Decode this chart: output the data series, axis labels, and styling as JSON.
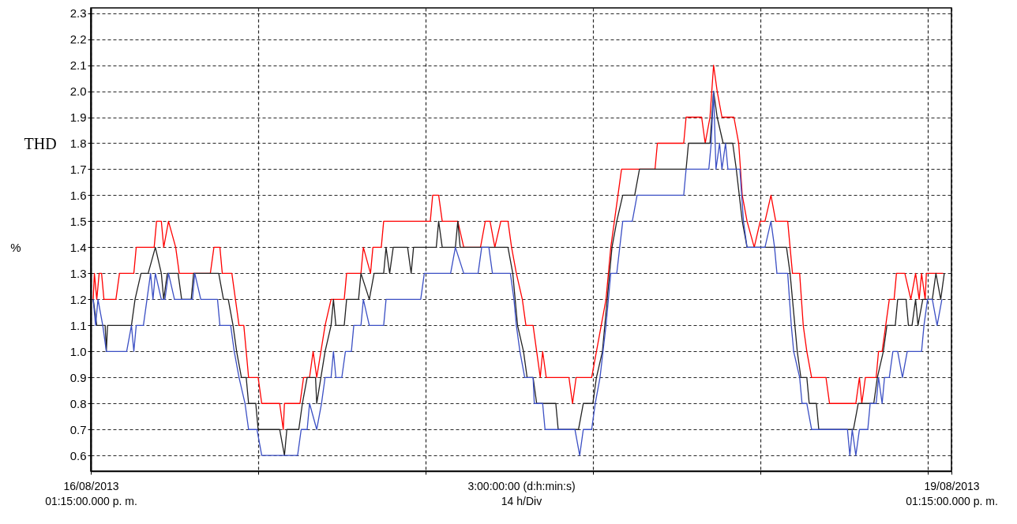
{
  "chart_data": {
    "type": "line",
    "xlabel": "3:00:00:00 (d:h:min:s)\n14 h/Div",
    "ylabel": "THD",
    "annotations": [
      "%"
    ],
    "xlim": [
      "2013-08-16T13:15",
      "2013-08-19T13:15"
    ],
    "ylim": [
      0.54,
      2.32
    ],
    "xticks": [
      {
        "value": "2013-08-16T13:15",
        "label": "16/08/2013\n01:15:00.000 p. m."
      },
      {
        "value": "2013-08-17T03:15",
        "label": null
      },
      {
        "value": "2013-08-17T17:15",
        "label": null
      },
      {
        "value": "2013-08-18T07:15",
        "label": null
      },
      {
        "value": "2013-08-18T21:15",
        "label": null
      },
      {
        "value": "2013-08-19T11:15",
        "label": null
      },
      {
        "value": "2013-08-19T13:15",
        "label": "19/08/2013\n01:15:00.000 p. m."
      }
    ],
    "yticks": [
      0.6,
      0.7,
      0.8,
      0.9,
      {
        "value": 1,
        "label": "1.0"
      },
      1.1,
      1.2,
      1.3,
      1.4,
      1.5,
      1.6,
      1.7,
      1.8,
      1.9,
      {
        "value": 2,
        "label": "2.0"
      },
      2.1,
      2.2,
      2.3
    ],
    "grid": true,
    "series": [
      {
        "color": "#ff0000",
        "x": [
          "2013-08-16T13:27",
          "2013-08-16T13:33",
          "2013-08-16T13:45",
          "2013-08-16T13:57",
          "2013-08-16T14:09",
          "2013-08-16T14:21",
          "2013-08-16T15:21",
          "2013-08-16T15:39",
          "2013-08-16T16:51",
          "2013-08-16T17:03",
          "2013-08-16T18:33",
          "2013-08-16T18:45",
          "2013-08-16T19:09",
          "2013-08-16T19:21",
          "2013-08-16T19:45",
          "2013-08-16T20:21",
          "2013-08-16T20:39",
          "2013-08-16T23:15",
          "2013-08-16T23:33",
          "2013-08-17T00:03",
          "2013-08-17T00:15",
          "2013-08-17T01:03",
          "2013-08-17T01:39",
          "2013-08-17T02:03",
          "2013-08-17T02:15",
          "2013-08-17T02:27",
          "2013-08-17T03:15",
          "2013-08-17T03:33",
          "2013-08-17T05:03",
          "2013-08-17T05:21",
          "2013-08-17T05:27",
          "2013-08-17T06:45",
          "2013-08-17T07:03",
          "2013-08-17T07:33",
          "2013-08-17T07:51",
          "2013-08-17T08:09",
          "2013-08-17T08:51",
          "2013-08-17T09:21",
          "2013-08-17T10:27",
          "2013-08-17T10:39",
          "2013-08-17T11:51",
          "2013-08-17T12:03",
          "2013-08-17T12:39",
          "2013-08-17T12:51",
          "2013-08-17T13:33",
          "2013-08-17T13:45",
          "2013-08-17T17:39",
          "2013-08-17T17:51",
          "2013-08-17T18:21",
          "2013-08-17T18:39",
          "2013-08-17T19:57",
          "2013-08-17T20:27",
          "2013-08-17T21:51",
          "2013-08-17T22:15",
          "2013-08-17T22:39",
          "2013-08-17T23:03",
          "2013-08-17T23:33",
          "2013-08-18T00:09",
          "2013-08-18T00:27",
          "2013-08-18T00:51",
          "2013-08-18T01:21",
          "2013-08-18T01:39",
          "2013-08-18T02:15",
          "2013-08-18T02:33",
          "2013-08-18T02:51",
          "2013-08-18T03:03",
          "2013-08-18T03:21",
          "2013-08-18T05:15",
          "2013-08-18T05:33",
          "2013-08-18T05:51",
          "2013-08-18T07:09",
          "2013-08-18T07:33",
          "2013-08-18T07:57",
          "2013-08-18T08:21",
          "2013-08-18T08:33",
          "2013-08-18T08:45",
          "2013-08-18T09:03",
          "2013-08-18T09:21",
          "2013-08-18T09:39",
          "2013-08-18T12:27",
          "2013-08-18T12:39",
          "2013-08-18T14:51",
          "2013-08-18T15:03",
          "2013-08-18T16:21",
          "2013-08-18T16:39",
          "2013-08-18T17:03",
          "2013-08-18T17:21",
          "2013-08-18T17:39",
          "2013-08-18T18:03",
          "2013-08-18T19:03",
          "2013-08-18T19:27",
          "2013-08-18T19:45",
          "2013-08-18T20:09",
          "2013-08-18T20:45",
          "2013-08-18T21:15",
          "2013-08-18T21:39",
          "2013-08-18T22:09",
          "2013-08-18T22:33",
          "2013-08-18T23:33",
          "2013-08-18T23:57",
          "2013-08-19T00:33",
          "2013-08-19T00:51",
          "2013-08-19T01:09",
          "2013-08-19T01:33",
          "2013-08-19T02:45",
          "2013-08-19T03:03",
          "2013-08-19T05:15",
          "2013-08-19T05:33",
          "2013-08-19T05:45",
          "2013-08-19T06:03",
          "2013-08-19T06:57",
          "2013-08-19T07:09",
          "2013-08-19T07:27",
          "2013-08-19T08:03",
          "2013-08-19T08:27",
          "2013-08-19T08:39",
          "2013-08-19T09:21",
          "2013-08-19T09:51",
          "2013-08-19T10:15",
          "2013-08-19T10:33",
          "2013-08-19T10:45",
          "2013-08-19T11:03",
          "2013-08-19T11:09",
          "2013-08-19T12:33"
        ],
        "values": [
          1.2,
          1.3,
          1.2,
          1.3,
          1.3,
          1.2,
          1.2,
          1.3,
          1.3,
          1.4,
          1.4,
          1.5,
          1.5,
          1.4,
          1.5,
          1.4,
          1.3,
          1.3,
          1.4,
          1.4,
          1.3,
          1.3,
          1.1,
          1.1,
          1.0,
          0.9,
          0.9,
          0.8,
          0.8,
          0.7,
          0.8,
          0.8,
          0.9,
          0.9,
          1.0,
          0.9,
          1.1,
          1.2,
          1.2,
          1.3,
          1.3,
          1.4,
          1.3,
          1.4,
          1.4,
          1.5,
          1.5,
          1.6,
          1.6,
          1.5,
          1.5,
          1.4,
          1.4,
          1.5,
          1.5,
          1.4,
          1.5,
          1.5,
          1.4,
          1.3,
          1.2,
          1.1,
          1.1,
          1.0,
          0.9,
          1.0,
          0.9,
          0.9,
          0.8,
          0.9,
          0.9,
          1.0,
          1.1,
          1.2,
          1.3,
          1.4,
          1.5,
          1.6,
          1.7,
          1.7,
          1.8,
          1.8,
          1.9,
          1.9,
          1.8,
          1.9,
          2.1,
          2.0,
          1.9,
          1.9,
          1.8,
          1.6,
          1.5,
          1.4,
          1.5,
          1.5,
          1.6,
          1.5,
          1.5,
          1.3,
          1.3,
          1.1,
          1.0,
          0.9,
          0.9,
          0.8,
          0.8,
          0.9,
          0.8,
          0.9,
          0.9,
          1.0,
          1.0,
          1.2,
          1.2,
          1.3,
          1.3,
          1.2,
          1.3,
          1.2,
          1.3,
          1.2,
          1.3,
          1.3
        ]
      },
      {
        "color": "#222222",
        "x": [
          "2013-08-16T13:27",
          "2013-08-16T13:45",
          "2013-08-16T14:27",
          "2013-08-16T14:33",
          "2013-08-16T14:39",
          "2013-08-16T16:39",
          "2013-08-16T16:57",
          "2013-08-16T17:27",
          "2013-08-16T18:03",
          "2013-08-16T18:39",
          "2013-08-16T19:09",
          "2013-08-16T19:21",
          "2013-08-16T19:39",
          "2013-08-16T20:33",
          "2013-08-16T20:51",
          "2013-08-16T21:39",
          "2013-08-16T21:51",
          "2013-08-16T23:57",
          "2013-08-17T00:21",
          "2013-08-17T00:45",
          "2013-08-17T01:09",
          "2013-08-17T01:27",
          "2013-08-17T01:51",
          "2013-08-17T02:15",
          "2013-08-17T02:27",
          "2013-08-17T03:03",
          "2013-08-17T03:15",
          "2013-08-17T05:03",
          "2013-08-17T05:27",
          "2013-08-17T05:39",
          "2013-08-17T06:39",
          "2013-08-17T06:57",
          "2013-08-17T07:21",
          "2013-08-17T08:03",
          "2013-08-17T08:09",
          "2013-08-17T08:51",
          "2013-08-17T09:21",
          "2013-08-17T09:33",
          "2013-08-17T09:45",
          "2013-08-17T10:27",
          "2013-08-17T10:39",
          "2013-08-17T11:39",
          "2013-08-17T11:51",
          "2013-08-17T12:33",
          "2013-08-17T12:57",
          "2013-08-17T13:45",
          "2013-08-17T13:57",
          "2013-08-17T14:15",
          "2013-08-17T14:33",
          "2013-08-17T15:45",
          "2013-08-17T16:03",
          "2013-08-17T16:15",
          "2013-08-17T18:09",
          "2013-08-17T18:21",
          "2013-08-17T18:39",
          "2013-08-17T19:45",
          "2013-08-17T19:57",
          "2013-08-17T20:09",
          "2013-08-18T00:09",
          "2013-08-18T00:33",
          "2013-08-18T00:57",
          "2013-08-18T01:27",
          "2013-08-18T01:45",
          "2013-08-18T02:15",
          "2013-08-18T02:33",
          "2013-08-18T04:09",
          "2013-08-18T04:21",
          "2013-08-18T06:03",
          "2013-08-18T06:27",
          "2013-08-18T07:15",
          "2013-08-18T07:33",
          "2013-08-18T08:03",
          "2013-08-18T08:27",
          "2013-08-18T08:51",
          "2013-08-18T09:15",
          "2013-08-18T09:45",
          "2013-08-18T10:45",
          "2013-08-18T11:09",
          "2013-08-18T15:03",
          "2013-08-18T15:15",
          "2013-08-18T17:03",
          "2013-08-18T17:21",
          "2013-08-18T17:39",
          "2013-08-18T18:09",
          "2013-08-18T18:57",
          "2013-08-18T19:15",
          "2013-08-18T19:45",
          "2013-08-18T20:09",
          "2013-08-18T23:27",
          "2013-08-18T23:45",
          "2013-08-18T23:57",
          "2013-08-19T00:09",
          "2013-08-19T00:21",
          "2013-08-19T00:39",
          "2013-08-19T01:09",
          "2013-08-19T01:21",
          "2013-08-19T01:57",
          "2013-08-19T02:09",
          "2013-08-19T05:03",
          "2013-08-19T05:27",
          "2013-08-19T06:45",
          "2013-08-19T07:03",
          "2013-08-19T07:33",
          "2013-08-19T07:51",
          "2013-08-19T08:33",
          "2013-08-19T08:45",
          "2013-08-19T09:27",
          "2013-08-19T09:39",
          "2013-08-19T09:57",
          "2013-08-19T10:15",
          "2013-08-19T10:27",
          "2013-08-19T10:51",
          "2013-08-19T11:39",
          "2013-08-19T11:57",
          "2013-08-19T12:21",
          "2013-08-19T12:39"
        ],
        "values": [
          1.2,
          1.1,
          1.1,
          1.0,
          1.1,
          1.1,
          1.2,
          1.3,
          1.3,
          1.4,
          1.3,
          1.2,
          1.3,
          1.3,
          1.2,
          1.2,
          1.3,
          1.3,
          1.2,
          1.2,
          1.1,
          1.0,
          0.9,
          0.9,
          0.8,
          0.8,
          0.7,
          0.7,
          0.6,
          0.7,
          0.7,
          0.8,
          0.9,
          0.9,
          0.8,
          1.0,
          1.1,
          1.2,
          1.1,
          1.1,
          1.2,
          1.2,
          1.3,
          1.2,
          1.3,
          1.3,
          1.4,
          1.3,
          1.4,
          1.4,
          1.3,
          1.4,
          1.4,
          1.5,
          1.4,
          1.4,
          1.5,
          1.4,
          1.4,
          1.3,
          1.1,
          1.0,
          0.9,
          0.9,
          0.8,
          0.8,
          0.7,
          0.7,
          0.8,
          0.8,
          0.9,
          1.0,
          1.2,
          1.4,
          1.5,
          1.6,
          1.6,
          1.7,
          1.7,
          1.8,
          1.8,
          2.0,
          1.9,
          1.8,
          1.8,
          1.7,
          1.5,
          1.4,
          1.4,
          1.3,
          1.2,
          1.1,
          1.0,
          0.9,
          0.9,
          0.8,
          0.8,
          0.7,
          0.7,
          0.8,
          0.8,
          0.9,
          1.0,
          1.1,
          1.1,
          1.2,
          1.2,
          1.1,
          1.1,
          1.2,
          1.1,
          1.2,
          1.2,
          1.3,
          1.2,
          1.3
        ]
      },
      {
        "color": "#3b4fc4",
        "x": [
          "2013-08-16T13:27",
          "2013-08-16T13:39",
          "2013-08-16T13:51",
          "2013-08-16T14:15",
          "2013-08-16T14:33",
          "2013-08-16T16:15",
          "2013-08-16T16:39",
          "2013-08-16T16:51",
          "2013-08-16T17:03",
          "2013-08-16T17:39",
          "2013-08-16T17:57",
          "2013-08-16T18:15",
          "2013-08-16T18:27",
          "2013-08-16T18:39",
          "2013-08-16T19:09",
          "2013-08-16T19:27",
          "2013-08-16T19:45",
          "2013-08-16T20:15",
          "2013-08-16T21:45",
          "2013-08-16T21:57",
          "2013-08-16T22:27",
          "2013-08-16T23:51",
          "2013-08-17T00:03",
          "2013-08-17T00:57",
          "2013-08-17T01:15",
          "2013-08-17T01:39",
          "2013-08-17T02:09",
          "2013-08-17T02:27",
          "2013-08-17T03:09",
          "2013-08-17T03:33",
          "2013-08-17T06:33",
          "2013-08-17T06:51",
          "2013-08-17T07:21",
          "2013-08-17T07:33",
          "2013-08-17T08:09",
          "2013-08-17T08:33",
          "2013-08-17T08:51",
          "2013-08-17T09:21",
          "2013-08-17T09:33",
          "2013-08-17T09:45",
          "2013-08-17T10:15",
          "2013-08-17T10:33",
          "2013-08-17T11:03",
          "2013-08-17T11:15",
          "2013-08-17T11:51",
          "2013-08-17T12:03",
          "2013-08-17T12:33",
          "2013-08-17T13:45",
          "2013-08-17T13:57",
          "2013-08-17T16:51",
          "2013-08-17T17:09",
          "2013-08-17T19:21",
          "2013-08-17T19:45",
          "2013-08-17T20:27",
          "2013-08-17T21:39",
          "2013-08-17T21:57",
          "2013-08-17T22:33",
          "2013-08-17T22:51",
          "2013-08-18T00:21",
          "2013-08-18T00:39",
          "2013-08-18T00:51",
          "2013-08-18T01:09",
          "2013-08-18T01:33",
          "2013-08-18T02:15",
          "2013-08-18T02:21",
          "2013-08-18T03:03",
          "2013-08-18T03:15",
          "2013-08-18T05:45",
          "2013-08-18T06:09",
          "2013-08-18T06:27",
          "2013-08-18T07:09",
          "2013-08-18T07:27",
          "2013-08-18T07:51",
          "2013-08-18T08:21",
          "2013-08-18T08:45",
          "2013-08-18T09:15",
          "2013-08-18T09:45",
          "2013-08-18T10:33",
          "2013-08-18T10:57",
          "2013-08-18T14:51",
          "2013-08-18T15:03",
          "2013-08-18T16:57",
          "2013-08-18T17:09",
          "2013-08-18T17:21",
          "2013-08-18T17:33",
          "2013-08-18T17:51",
          "2013-08-18T18:03",
          "2013-08-18T18:21",
          "2013-08-18T18:33",
          "2013-08-18T19:33",
          "2013-08-18T19:51",
          "2013-08-18T20:09",
          "2013-08-18T21:39",
          "2013-08-18T22:09",
          "2013-08-18T22:27",
          "2013-08-18T22:39",
          "2013-08-18T23:33",
          "2013-08-18T23:51",
          "2013-08-19T00:03",
          "2013-08-19T00:33",
          "2013-08-19T00:45",
          "2013-08-19T01:09",
          "2013-08-19T01:33",
          "2013-08-19T04:33",
          "2013-08-19T04:45",
          "2013-08-19T04:57",
          "2013-08-19T05:15",
          "2013-08-19T05:33",
          "2013-08-19T06:15",
          "2013-08-19T06:27",
          "2013-08-19T06:57",
          "2013-08-19T07:09",
          "2013-08-19T07:27",
          "2013-08-19T07:39",
          "2013-08-19T08:03",
          "2013-08-19T08:21",
          "2013-08-19T08:45",
          "2013-08-19T09:09",
          "2013-08-19T09:33",
          "2013-08-19T10:45",
          "2013-08-19T10:57",
          "2013-08-19T11:15",
          "2013-08-19T11:39",
          "2013-08-19T12:03",
          "2013-08-19T12:27"
        ],
        "values": [
          1.2,
          1.1,
          1.2,
          1.1,
          1.0,
          1.0,
          1.1,
          1.0,
          1.1,
          1.1,
          1.2,
          1.3,
          1.2,
          1.3,
          1.2,
          1.2,
          1.3,
          1.2,
          1.2,
          1.3,
          1.2,
          1.2,
          1.1,
          1.1,
          1.0,
          0.9,
          0.8,
          0.7,
          0.7,
          0.6,
          0.6,
          0.7,
          0.7,
          0.8,
          0.7,
          0.8,
          0.9,
          0.9,
          1.0,
          0.9,
          0.9,
          1.0,
          1.0,
          1.1,
          1.1,
          1.2,
          1.1,
          1.1,
          1.2,
          1.2,
          1.3,
          1.3,
          1.4,
          1.3,
          1.3,
          1.4,
          1.4,
          1.3,
          1.3,
          1.2,
          1.1,
          1.0,
          0.9,
          0.9,
          0.8,
          0.8,
          0.7,
          0.7,
          0.6,
          0.7,
          0.7,
          0.8,
          0.9,
          1.1,
          1.3,
          1.3,
          1.5,
          1.5,
          1.6,
          1.6,
          1.7,
          1.7,
          1.8,
          2.0,
          1.7,
          1.8,
          1.7,
          1.8,
          1.7,
          1.7,
          1.5,
          1.4,
          1.4,
          1.5,
          1.4,
          1.3,
          1.3,
          1.1,
          1.0,
          0.9,
          0.8,
          0.8,
          0.7,
          0.7,
          0.6,
          0.7,
          0.6,
          0.7,
          0.7,
          0.8,
          0.8,
          0.9,
          0.8,
          0.9,
          0.9,
          1.0,
          1.0,
          0.9,
          1.0,
          1.0,
          1.1,
          1.2,
          1.2,
          1.1,
          1.2
        ]
      }
    ]
  }
}
